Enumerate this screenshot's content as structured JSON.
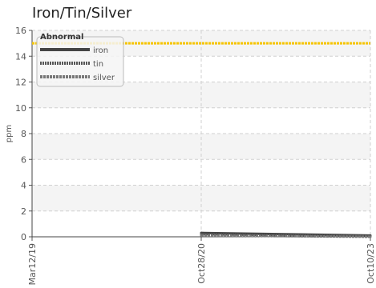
{
  "chart_data": {
    "type": "line",
    "title": "Iron/Tin/Silver",
    "ylabel": "ppm",
    "xlabel": "",
    "ylim": [
      0,
      16
    ],
    "yticks": [
      0,
      2,
      4,
      6,
      8,
      10,
      12,
      14,
      16
    ],
    "categories": [
      "Mar12/19",
      "Oct28/20",
      "Oct10/23"
    ],
    "grid": true,
    "legend_position": "top-left",
    "threshold": {
      "name": "Abnormal",
      "value": 15,
      "color": "#f5c400"
    },
    "series": [
      {
        "name": "iron",
        "values": [
          null,
          0.3,
          0.1
        ],
        "color": "#444444",
        "style": "solid"
      },
      {
        "name": "tin",
        "values": [
          null,
          0.2,
          0.05
        ],
        "color": "#555555",
        "style": "dotted"
      },
      {
        "name": "silver",
        "values": [
          null,
          0.1,
          0.0
        ],
        "color": "#777777",
        "style": "dashed"
      }
    ]
  }
}
